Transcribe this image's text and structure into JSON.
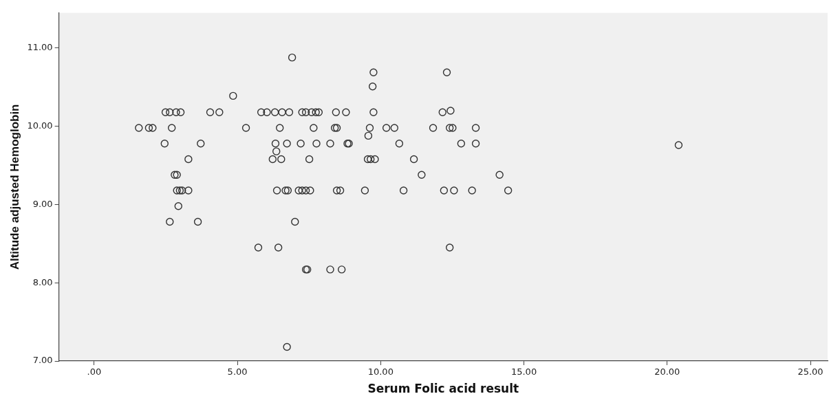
{
  "chart_data": {
    "type": "scatter",
    "xlabel": "Serum Folic acid result",
    "ylabel": "Altitude adjusted Hemoglobin",
    "xlim": [
      -1.23,
      25.6
    ],
    "ylim": [
      7,
      11.45
    ],
    "xticks": [
      {
        "value": 0,
        "label": ".00"
      },
      {
        "value": 5,
        "label": "5.00"
      },
      {
        "value": 10,
        "label": "10.00"
      },
      {
        "value": 15,
        "label": "15.00"
      },
      {
        "value": 20,
        "label": "20.00"
      },
      {
        "value": 25,
        "label": "25.00"
      }
    ],
    "yticks": [
      {
        "value": 7,
        "label": "7.00"
      },
      {
        "value": 8,
        "label": "8.00"
      },
      {
        "value": 9,
        "label": "9.00"
      },
      {
        "value": 10,
        "label": "10.00"
      },
      {
        "value": 11,
        "label": "11.00"
      }
    ],
    "grid": false,
    "legend": false,
    "marker": "circle",
    "series": [
      {
        "color": "#333333",
        "x": [
          2.49,
          2.64,
          2.86,
          3.02,
          4.05,
          4.37,
          5.83,
          6.03,
          6.31,
          6.56,
          6.81,
          7.26,
          7.39,
          7.59,
          7.74,
          7.84,
          8.44,
          8.79,
          9.75,
          12.16,
          12.44,
          1.56,
          1.91,
          2.04,
          2.71,
          5.3,
          6.48,
          7.66,
          8.4,
          8.47,
          9.62,
          10.2,
          10.48,
          11.83,
          12.41,
          12.51,
          13.32,
          2.46,
          3.72,
          6.33,
          6.73,
          7.21,
          7.76,
          8.24,
          8.84,
          8.89,
          10.65,
          12.81,
          13.32,
          9.57,
          6.36,
          3.29,
          6.23,
          6.53,
          7.51,
          9.55,
          9.65,
          9.8,
          11.16,
          2.81,
          2.89,
          11.43,
          14.15,
          2.89,
          2.99,
          3.07,
          3.29,
          6.38,
          6.68,
          6.76,
          7.14,
          7.26,
          7.39,
          7.54,
          8.47,
          8.59,
          9.45,
          10.8,
          12.21,
          12.56,
          13.19,
          14.45,
          2.94,
          2.64,
          3.62,
          7.01,
          5.73,
          6.43,
          12.41,
          7.39,
          7.44,
          8.24,
          8.64,
          6.73,
          6.91,
          9.75,
          12.31,
          9.72,
          4.85,
          20.4
        ],
        "values": [
          10.18,
          10.18,
          10.18,
          10.18,
          10.18,
          10.18,
          10.18,
          10.18,
          10.18,
          10.18,
          10.18,
          10.18,
          10.18,
          10.18,
          10.18,
          10.18,
          10.18,
          10.18,
          10.18,
          10.18,
          10.2,
          9.98,
          9.98,
          9.98,
          9.98,
          9.98,
          9.98,
          9.98,
          9.98,
          9.98,
          9.98,
          9.98,
          9.98,
          9.98,
          9.98,
          9.98,
          9.98,
          9.78,
          9.78,
          9.78,
          9.78,
          9.78,
          9.78,
          9.78,
          9.78,
          9.78,
          9.78,
          9.78,
          9.78,
          9.88,
          9.68,
          9.58,
          9.58,
          9.58,
          9.58,
          9.58,
          9.58,
          9.58,
          9.58,
          9.38,
          9.38,
          9.38,
          9.38,
          9.18,
          9.18,
          9.18,
          9.18,
          9.18,
          9.18,
          9.18,
          9.18,
          9.18,
          9.18,
          9.18,
          9.18,
          9.18,
          9.18,
          9.18,
          9.18,
          9.18,
          9.18,
          9.18,
          8.98,
          8.78,
          8.78,
          8.78,
          8.45,
          8.45,
          8.45,
          8.17,
          8.17,
          8.17,
          8.17,
          7.18,
          10.88,
          10.69,
          10.69,
          10.51,
          10.39,
          9.76
        ]
      }
    ]
  }
}
